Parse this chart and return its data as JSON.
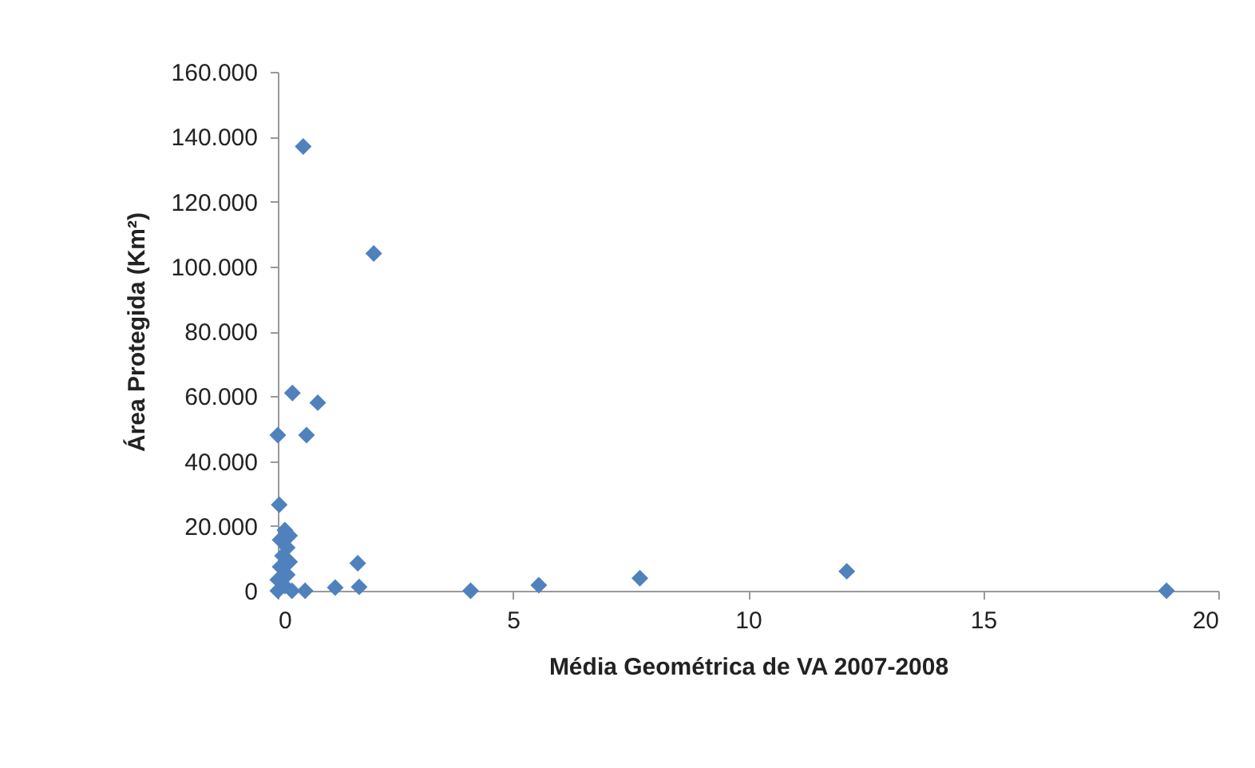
{
  "chart_data": {
    "type": "scatter",
    "xlabel": "Média Geométrica de VA 2007-2008",
    "ylabel": "Área Protegida (Km²)",
    "marker": "diamond",
    "grid": false,
    "x": [
      0.54,
      2.04,
      0.31,
      0.85,
      0.0,
      0.61,
      0.03,
      0.15,
      0.25,
      0.05,
      0.2,
      0.1,
      0.25,
      0.05,
      0.2,
      0.0,
      0.15,
      0.0,
      0.3,
      0.58,
      1.22,
      1.73,
      1.7,
      4.1,
      5.55,
      7.7,
      12.1,
      18.9
    ],
    "series": [
      {
        "color": "#4f81bd",
        "values": [
          137000,
          104000,
          61000,
          58000,
          48000,
          48000,
          26500,
          18700,
          17000,
          15700,
          13300,
          10800,
          8900,
          7400,
          4900,
          3400,
          1500,
          0,
          0,
          0,
          1000,
          1200,
          8500,
          0,
          1700,
          3900,
          6000,
          0
        ]
      }
    ],
    "xlim": [
      0,
      20
    ],
    "xticks": [
      0,
      5,
      10,
      15,
      20
    ],
    "ylim": [
      0,
      160000
    ],
    "yticks": [
      {
        "value": 0,
        "label": "0"
      },
      {
        "value": 20000,
        "label": "20.000"
      },
      {
        "value": 40000,
        "label": "40.000"
      },
      {
        "value": 60000,
        "label": "60.000"
      },
      {
        "value": 80000,
        "label": "80.000"
      },
      {
        "value": 100000,
        "label": "100.000"
      },
      {
        "value": 120000,
        "label": "120.000"
      },
      {
        "value": 140000,
        "label": "140.000"
      },
      {
        "value": 160000,
        "label": "160.000"
      }
    ]
  }
}
